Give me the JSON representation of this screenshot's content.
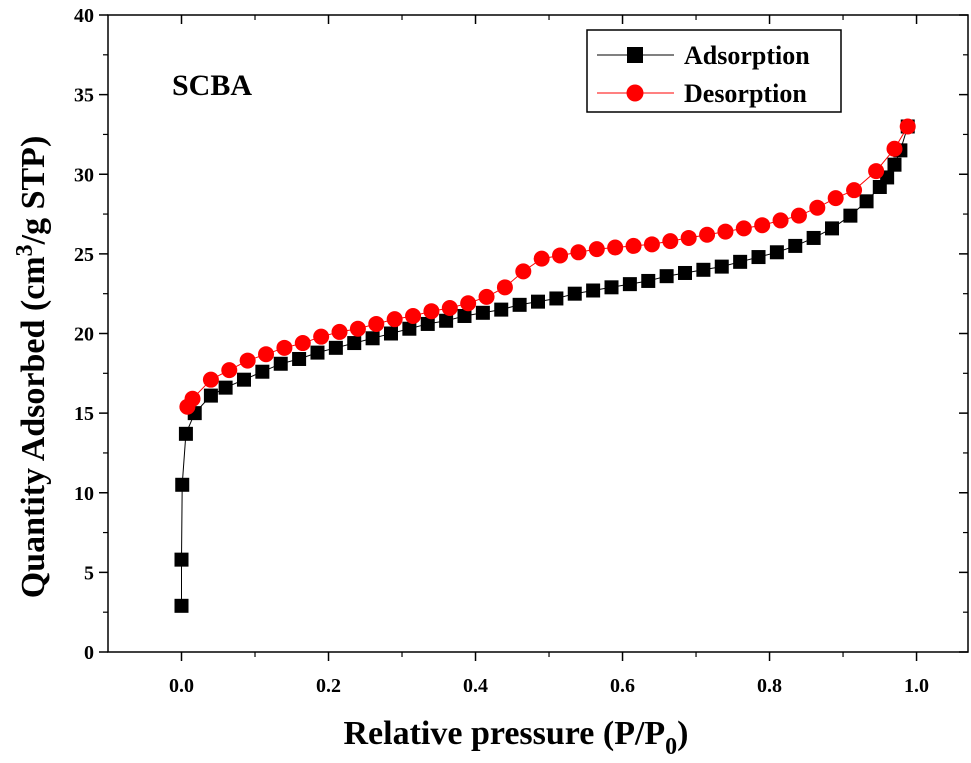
{
  "chart_data": {
    "type": "scatter",
    "panel_label": "SCBA",
    "xlabel": {
      "main": "Relative pressure (P/P",
      "sub": "0",
      "end": ")"
    },
    "ylabel": {
      "main": "Quantity Adsorbed (cm",
      "sup": "3",
      "end": "/g STP)"
    },
    "xlim": [
      -0.1,
      1.07
    ],
    "ylim": [
      0,
      40
    ],
    "x_ticks": [
      0.0,
      0.2,
      0.4,
      0.6,
      0.8,
      1.0
    ],
    "x_tick_labels": [
      "0.0",
      "0.2",
      "0.4",
      "0.6",
      "0.8",
      "1.0"
    ],
    "y_ticks": [
      0,
      5,
      10,
      15,
      20,
      25,
      30,
      35,
      40
    ],
    "y_tick_labels": [
      "0",
      "5",
      "10",
      "15",
      "20",
      "25",
      "30",
      "35",
      "40"
    ],
    "legend_position": "top-right",
    "grid": false,
    "series": [
      {
        "name": "Adsorption",
        "color": "#000000",
        "marker": "square",
        "x": [
          0.0,
          0.0,
          0.001,
          0.006,
          0.018,
          0.04,
          0.06,
          0.085,
          0.11,
          0.135,
          0.16,
          0.185,
          0.21,
          0.235,
          0.26,
          0.285,
          0.31,
          0.335,
          0.36,
          0.385,
          0.41,
          0.435,
          0.46,
          0.485,
          0.51,
          0.535,
          0.56,
          0.585,
          0.61,
          0.635,
          0.66,
          0.685,
          0.71,
          0.735,
          0.76,
          0.785,
          0.81,
          0.835,
          0.86,
          0.885,
          0.91,
          0.932,
          0.95,
          0.96,
          0.97,
          0.978,
          0.988
        ],
        "y": [
          2.9,
          5.8,
          10.5,
          13.7,
          15.0,
          16.1,
          16.6,
          17.1,
          17.6,
          18.1,
          18.4,
          18.8,
          19.1,
          19.4,
          19.7,
          20.0,
          20.3,
          20.6,
          20.8,
          21.1,
          21.3,
          21.5,
          21.8,
          22.0,
          22.2,
          22.5,
          22.7,
          22.9,
          23.1,
          23.3,
          23.6,
          23.8,
          24.0,
          24.2,
          24.5,
          24.8,
          25.1,
          25.5,
          26.0,
          26.6,
          27.4,
          28.3,
          29.2,
          29.8,
          30.6,
          31.5,
          33.0
        ]
      },
      {
        "name": "Desorption",
        "color": "#ff0000",
        "marker": "circle",
        "x": [
          0.988,
          0.97,
          0.945,
          0.915,
          0.89,
          0.865,
          0.84,
          0.815,
          0.79,
          0.765,
          0.74,
          0.715,
          0.69,
          0.665,
          0.64,
          0.615,
          0.59,
          0.565,
          0.54,
          0.515,
          0.49,
          0.465,
          0.44,
          0.415,
          0.39,
          0.365,
          0.34,
          0.315,
          0.29,
          0.265,
          0.24,
          0.215,
          0.19,
          0.165,
          0.14,
          0.115,
          0.09,
          0.065,
          0.04,
          0.015,
          0.008
        ],
        "y": [
          33.0,
          31.6,
          30.2,
          29.0,
          28.5,
          27.9,
          27.4,
          27.1,
          26.8,
          26.6,
          26.4,
          26.2,
          26.0,
          25.8,
          25.6,
          25.5,
          25.4,
          25.3,
          25.1,
          24.9,
          24.7,
          23.9,
          22.9,
          22.3,
          21.9,
          21.6,
          21.4,
          21.1,
          20.9,
          20.6,
          20.3,
          20.1,
          19.8,
          19.4,
          19.1,
          18.7,
          18.3,
          17.7,
          17.1,
          15.9,
          15.4
        ]
      }
    ]
  }
}
